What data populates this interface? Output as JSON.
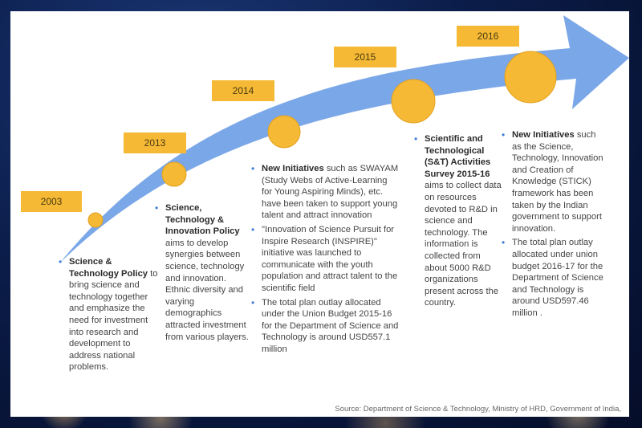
{
  "years": [
    "2003",
    "2013",
    "2014",
    "2015",
    "2016"
  ],
  "colors": {
    "arrow": "#7aa7e8",
    "circle": "#f5b935",
    "bullet": "#3d7bd6",
    "year_box": "#f5b935"
  },
  "col2003": {
    "i1_bold": "Science & Technology Policy",
    "i1_text": " to bring science and technology together and emphasize the need for investment into research and development to address national problems."
  },
  "col2013": {
    "i1_bold": "Science, Technology & Innovation Policy",
    "i1_text": " aims to develop synergies between science, technology and innovation. Ethnic diversity and varying demographics attracted investment from various players."
  },
  "col2014": {
    "i1_bold": "New Initiatives",
    "i1_text": " such as SWAYAM (Study Webs of Active-Learning for Young Aspiring Minds), etc. have been taken to support young talent and attract innovation",
    "i2_text": "\"Innovation of Science Pursuit for Inspire Research (INSPIRE)\" initiative was launched to communicate with the youth population and attract talent to the scientific field",
    "i3_text": "The total plan outlay allocated under the Union Budget 2015-16 for the Department of Science and Technology is around USD557.1 million"
  },
  "col2015": {
    "i1_bold": "Scientific and Technological (S&T) Activities Survey 2015-16",
    "i1_text": " aims to collect data on resources devoted to R&D in science and technology. The information is collected from about 5000 R&D organizations present across the country."
  },
  "col2016": {
    "i1_bold": "New Initiatives",
    "i1_text": " such as the Science, Technology, Innovation and Creation of Knowledge (STICK) framework has been taken by the Indian government to support innovation.",
    "i2_text": "The total plan outlay allocated under union budget 2016-17 for the Department of Science and Technology is around USD597.46 million ."
  },
  "source": "Source: Department of Science & Technology, Ministry of HRD, Government of India,"
}
